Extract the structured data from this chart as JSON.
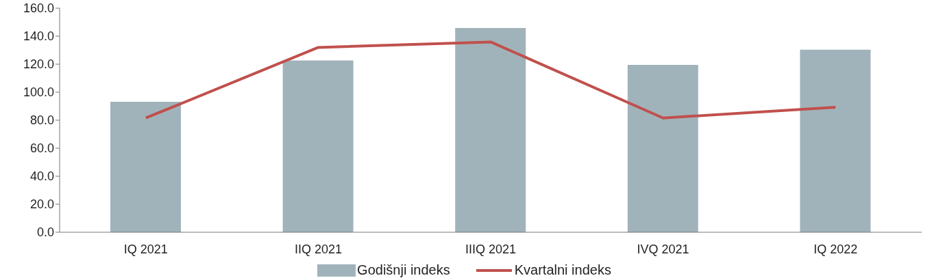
{
  "chart_data": {
    "type": "bar",
    "categories": [
      "IQ 2021",
      "IIQ 2021",
      "IIIQ 2021",
      "IVQ 2021",
      "IQ 2022"
    ],
    "series": [
      {
        "name": "Godišnji indeks",
        "color": "#a1b3ba",
        "values": [
          93.2,
          122.7,
          145.8,
          119.5,
          130.4
        ]
      },
      {
        "name": "Kvartalni indeks",
        "type": "line",
        "color": "#c0504d",
        "values": [
          81.6,
          132.0,
          135.9,
          81.6,
          89.3
        ]
      }
    ],
    "ylim": [
      0,
      160
    ],
    "yticks": [
      {
        "value": 0,
        "label": "0.0"
      },
      {
        "value": 20,
        "label": "20.0"
      },
      {
        "value": 40,
        "label": "40.0"
      },
      {
        "value": 60,
        "label": "60.0"
      },
      {
        "value": 80,
        "label": "80.0"
      },
      {
        "value": 100,
        "label": "100.0"
      },
      {
        "value": 120,
        "label": "120.0"
      },
      {
        "value": 140,
        "label": "140.0"
      },
      {
        "value": 160,
        "label": "160.0"
      }
    ],
    "grid": false,
    "legend": "bottom",
    "marker": "none"
  }
}
